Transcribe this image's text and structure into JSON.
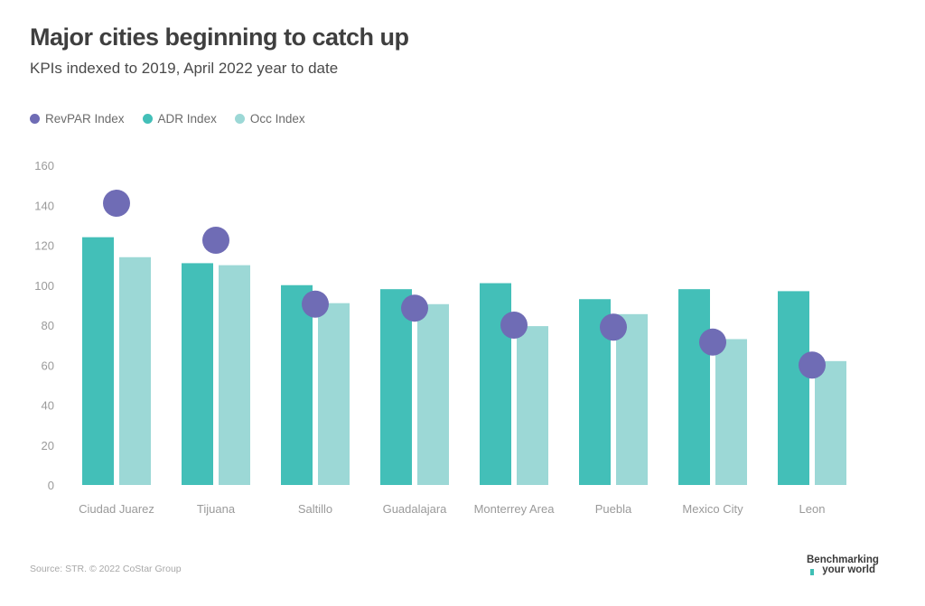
{
  "header": {
    "title": "Major cities beginning to catch up",
    "subtitle": "KPIs indexed to 2019, April 2022 year to date"
  },
  "legend": [
    {
      "label": "RevPAR Index",
      "color": "#6f6cb5"
    },
    {
      "label": "ADR Index",
      "color": "#43bfb8"
    },
    {
      "label": "Occ Index",
      "color": "#9cd8d6"
    }
  ],
  "footer": {
    "source": "Source: STR. © 2022 CoStar Group",
    "brand_line1": "Benchmarking",
    "brand_line2": "your world"
  },
  "chart_data": {
    "type": "bar",
    "title": "Major cities beginning to catch up",
    "subtitle": "KPIs indexed to 2019, April 2022 year to date",
    "categories": [
      "Ciudad Juarez",
      "Tijuana",
      "Saltillo",
      "Guadalajara",
      "Monterrey Area",
      "Puebla",
      "Mexico City",
      "Leon"
    ],
    "series": [
      {
        "name": "ADR Index",
        "type": "bar",
        "color": "#43bfb8",
        "values": [
          124,
          111,
          100,
          98,
          101,
          93,
          98,
          97
        ]
      },
      {
        "name": "Occ Index",
        "type": "bar",
        "color": "#9cd8d6",
        "values": [
          114,
          110,
          91,
          90.5,
          79.5,
          85.5,
          73,
          62
        ]
      },
      {
        "name": "RevPAR Index",
        "type": "dot",
        "color": "#6f6cb5",
        "values": [
          141,
          122.5,
          90.5,
          88.5,
          80,
          79,
          71.5,
          60
        ]
      }
    ],
    "yticks": [
      0,
      20,
      40,
      60,
      80,
      100,
      120,
      140,
      160
    ],
    "ylim": [
      0,
      160
    ],
    "xlabel": "",
    "ylabel": "",
    "grid": false,
    "legend_position": "top-left"
  }
}
